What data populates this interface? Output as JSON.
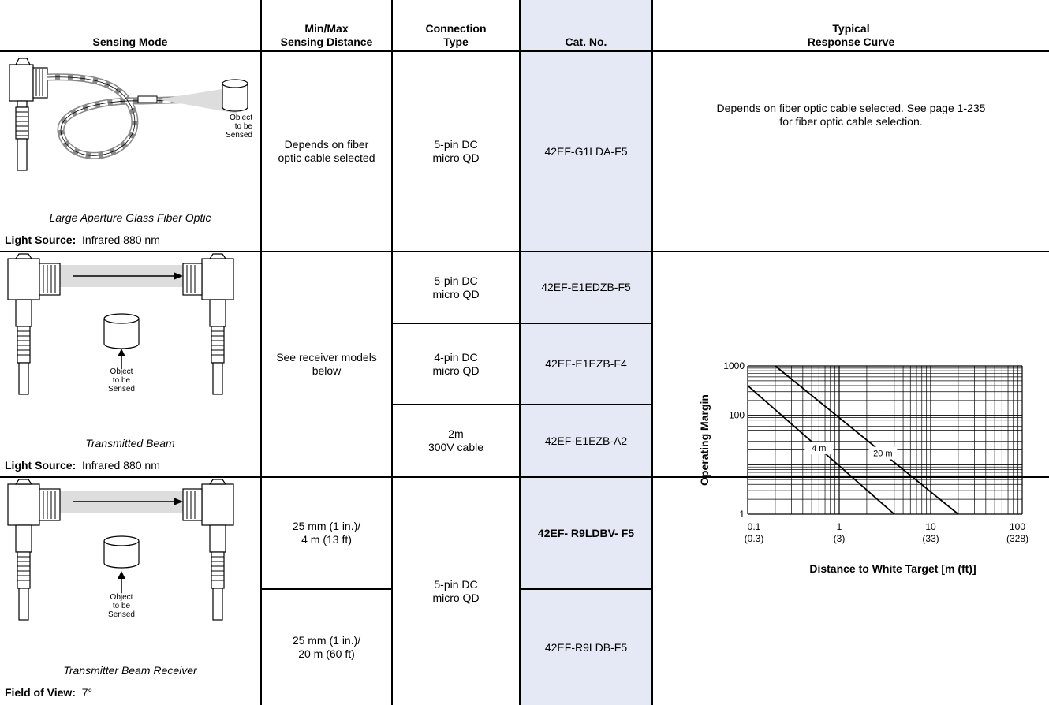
{
  "header": {
    "col1": "Sensing Mode",
    "col2_line1": "Min/Max",
    "col2_line2": "Sensing Distance",
    "col3_line1": "Connection",
    "col3_line2": "Type",
    "col4": "Cat. No.",
    "col5_line1": "Typical",
    "col5_line2": "Response Curve"
  },
  "row1": {
    "object_label": [
      "Object",
      "to be",
      "Sensed"
    ],
    "caption": "Large Aperture Glass Fiber Optic",
    "spec_label": "Light Source",
    "spec_value": "Infrared 880 nm",
    "distance_line1": "Depends on fiber",
    "distance_line2": "optic cable selected",
    "connection_line1": "5-pin DC",
    "connection_line2": "micro QD",
    "cat_no": "42EF-G1LDA-F5",
    "curve_line1": "Depends on fiber optic cable selected. See page 1-235",
    "curve_line2": "for fiber optic cable selection."
  },
  "row2": {
    "object_label": [
      "Object",
      "to be",
      "Sensed"
    ],
    "caption": "Transmitted Beam",
    "spec_label": "Light Source",
    "spec_value": "Infrared 880 nm",
    "distance_line1": "See receiver models",
    "distance_line2": "below",
    "options": [
      {
        "connection_line1": "5-pin DC",
        "connection_line2": "micro QD",
        "cat_no": "42EF-E1EDZB-F5"
      },
      {
        "connection_line1": "4-pin DC",
        "connection_line2": "micro QD",
        "cat_no": "42EF-E1EZB-F4"
      },
      {
        "connection_line1": "2m",
        "connection_line2": "300V cable",
        "cat_no": "42EF-E1EZB-A2"
      }
    ]
  },
  "row3": {
    "object_label": [
      "Object",
      "to be",
      "Sensed"
    ],
    "caption": "Transmitter Beam Receiver",
    "spec_label": "Field of View",
    "spec_value": "7°",
    "connection_line1": "5-pin DC",
    "connection_line2": "micro QD",
    "options": [
      {
        "distance_line1": "25 mm (1 in.)/",
        "distance_line2": "4 m (13 ft)",
        "cat_no": "42EF- R9LDBV- F5"
      },
      {
        "distance_line1": "25 mm (1 in.)/",
        "distance_line2": "20 m (60 ft)",
        "cat_no": "42EF-R9LDB-F5"
      }
    ]
  },
  "chart_data": {
    "type": "line",
    "scale": "log-log",
    "xlabel": "Distance to White Target [m (ft)]",
    "ylabel": "Operating Margin",
    "xlim": [
      0.1,
      100
    ],
    "ylim": [
      1,
      1000
    ],
    "x_ticks": [
      {
        "value": 0.1,
        "label": "0.1",
        "sublabel": "(0.3)"
      },
      {
        "value": 1,
        "label": "1",
        "sublabel": "(3)"
      },
      {
        "value": 10,
        "label": "10",
        "sublabel": "(33)"
      },
      {
        "value": 100,
        "label": "100",
        "sublabel": "(328)"
      }
    ],
    "y_ticks": [
      {
        "value": 1,
        "label": "1"
      },
      {
        "value": 100,
        "label": "100"
      },
      {
        "value": 1000,
        "label": "1000"
      }
    ],
    "grid": true,
    "series": [
      {
        "name": "4 m",
        "x": [
          0.1,
          4
        ],
        "y": [
          400,
          1
        ]
      },
      {
        "name": "20 m",
        "x": [
          0.2,
          20
        ],
        "y": [
          1000,
          1
        ]
      }
    ]
  }
}
